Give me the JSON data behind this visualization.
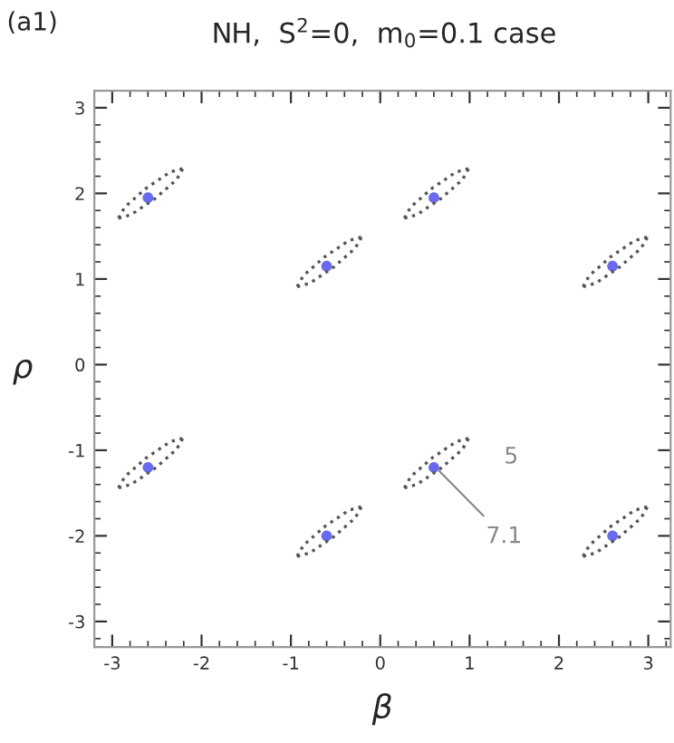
{
  "chart_data": {
    "type": "scatter",
    "title": "NH,  S$^{2}$=0,  m$_{0}$=0.1 case",
    "xlabel": "β",
    "ylabel": "ρ",
    "annotations": [
      "(a1)",
      {
        "text": "5",
        "x": 0.99,
        "y": -0.86
      },
      {
        "text": "7.1",
        "x": 0.62,
        "y": -1.2
      }
    ],
    "xlim": [
      -3.2,
      3.25
    ],
    "ylim": [
      -3.3,
      3.2
    ],
    "xticks": [
      -3,
      -2,
      -1,
      0,
      1,
      2,
      3
    ],
    "yticks": [
      -3,
      -2,
      -1,
      0,
      1,
      2,
      3
    ],
    "grid": false,
    "legend": false,
    "series": [
      {
        "type": "line",
        "line_style": "dotted",
        "marker": "none",
        "color": "#555555",
        "x": [
          -2.93,
          -2.86,
          -2.62,
          -2.35,
          -2.21
        ],
        "values": [
          1.71,
          1.84,
          2.06,
          2.25,
          2.29
        ]
      },
      {
        "type": "line",
        "line_style": "dotted",
        "marker": "none",
        "color": "#555555",
        "x": [
          -2.93,
          -2.79,
          -2.52,
          -2.28,
          -2.21
        ],
        "values": [
          1.71,
          1.75,
          1.94,
          2.16,
          2.29
        ]
      },
      {
        "type": "line",
        "line_style": "dotted",
        "marker": "none",
        "color": "#555555",
        "x": [
          0.27,
          0.34,
          0.58,
          0.85,
          0.99
        ],
        "values": [
          1.71,
          1.84,
          2.06,
          2.25,
          2.29
        ]
      },
      {
        "type": "line",
        "line_style": "dotted",
        "marker": "none",
        "color": "#555555",
        "x": [
          0.27,
          0.41,
          0.68,
          0.92,
          0.99
        ],
        "values": [
          1.71,
          1.75,
          1.94,
          2.16,
          2.29
        ]
      },
      {
        "type": "line",
        "line_style": "dotted",
        "marker": "none",
        "color": "#555555",
        "x": [
          -0.93,
          -0.86,
          -0.62,
          -0.35,
          -0.21
        ],
        "values": [
          0.91,
          1.04,
          1.26,
          1.45,
          1.49
        ]
      },
      {
        "type": "line",
        "line_style": "dotted",
        "marker": "none",
        "color": "#555555",
        "x": [
          -0.93,
          -0.79,
          -0.52,
          -0.28,
          -0.21
        ],
        "values": [
          0.91,
          0.95,
          1.14,
          1.36,
          1.49
        ]
      },
      {
        "type": "line",
        "line_style": "dotted",
        "marker": "none",
        "color": "#555555",
        "x": [
          2.27,
          2.34,
          2.58,
          2.85,
          2.99
        ],
        "values": [
          0.91,
          1.04,
          1.26,
          1.45,
          1.49
        ]
      },
      {
        "type": "line",
        "line_style": "dotted",
        "marker": "none",
        "color": "#555555",
        "x": [
          2.27,
          2.41,
          2.68,
          2.92,
          2.99
        ],
        "values": [
          0.91,
          0.95,
          1.14,
          1.36,
          1.49
        ]
      },
      {
        "type": "line",
        "line_style": "dotted",
        "marker": "none",
        "color": "#555555",
        "x": [
          -2.93,
          -2.86,
          -2.62,
          -2.35,
          -2.21
        ],
        "values": [
          -1.44,
          -1.31,
          -1.09,
          -0.9,
          -0.86
        ]
      },
      {
        "type": "line",
        "line_style": "dotted",
        "marker": "none",
        "color": "#555555",
        "x": [
          -2.93,
          -2.79,
          -2.52,
          -2.28,
          -2.21
        ],
        "values": [
          -1.44,
          -1.4,
          -1.21,
          -0.99,
          -0.86
        ]
      },
      {
        "type": "line",
        "line_style": "dotted",
        "marker": "none",
        "color": "#555555",
        "x": [
          0.27,
          0.34,
          0.58,
          0.85,
          0.99
        ],
        "values": [
          -1.44,
          -1.31,
          -1.09,
          -0.9,
          -0.86
        ]
      },
      {
        "type": "line",
        "line_style": "dotted",
        "marker": "none",
        "color": "#555555",
        "x": [
          0.27,
          0.41,
          0.68,
          0.92,
          0.99
        ],
        "values": [
          -1.44,
          -1.4,
          -1.21,
          -0.99,
          -0.86
        ]
      },
      {
        "type": "line",
        "line_style": "dotted",
        "marker": "none",
        "color": "#555555",
        "x": [
          -0.93,
          -0.86,
          -0.62,
          -0.35,
          -0.21
        ],
        "values": [
          -2.24,
          -2.11,
          -1.89,
          -1.7,
          -1.66
        ]
      },
      {
        "type": "line",
        "line_style": "dotted",
        "marker": "none",
        "color": "#555555",
        "x": [
          -0.93,
          -0.79,
          -0.52,
          -0.28,
          -0.21
        ],
        "values": [
          -2.24,
          -2.2,
          -2.01,
          -1.79,
          -1.66
        ]
      },
      {
        "type": "line",
        "line_style": "dotted",
        "marker": "none",
        "color": "#555555",
        "x": [
          2.27,
          2.34,
          2.58,
          2.85,
          2.99
        ],
        "values": [
          -2.24,
          -2.11,
          -1.89,
          -1.7,
          -1.66
        ]
      },
      {
        "type": "line",
        "line_style": "dotted",
        "marker": "none",
        "color": "#555555",
        "x": [
          2.27,
          2.41,
          2.68,
          2.92,
          2.99
        ],
        "values": [
          -2.24,
          -2.2,
          -2.01,
          -1.79,
          -1.66
        ]
      },
      {
        "marker": "circle",
        "color": "#6a6aee",
        "x": [
          -2.6,
          0.6,
          -0.6,
          2.6,
          -2.6,
          0.6,
          -0.6,
          2.6
        ],
        "values": [
          1.95,
          1.95,
          1.15,
          1.15,
          -1.2,
          -1.2,
          -2.0,
          -2.0
        ]
      }
    ]
  }
}
